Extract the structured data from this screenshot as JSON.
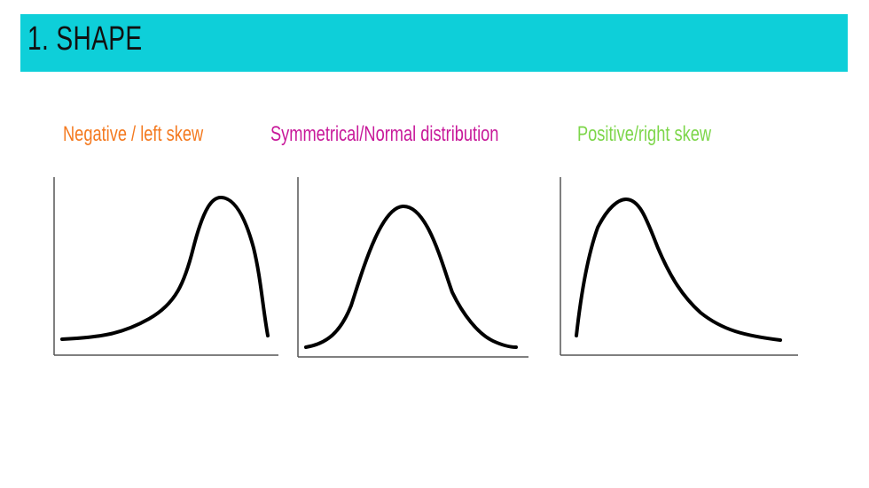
{
  "slide": {
    "title": "1. SHAPE"
  },
  "colors": {
    "title_bar": "#0ECFD9",
    "negative_label": "#F47A20",
    "symmetrical_label": "#C8199A",
    "positive_label": "#7DD64A",
    "curve": "#000000"
  },
  "distributions": [
    {
      "key": "negative",
      "label": "Negative / left skew"
    },
    {
      "key": "symmetrical",
      "label": "Symmetrical/Normal distribution"
    },
    {
      "key": "positive",
      "label": "Positive/right skew"
    }
  ]
}
